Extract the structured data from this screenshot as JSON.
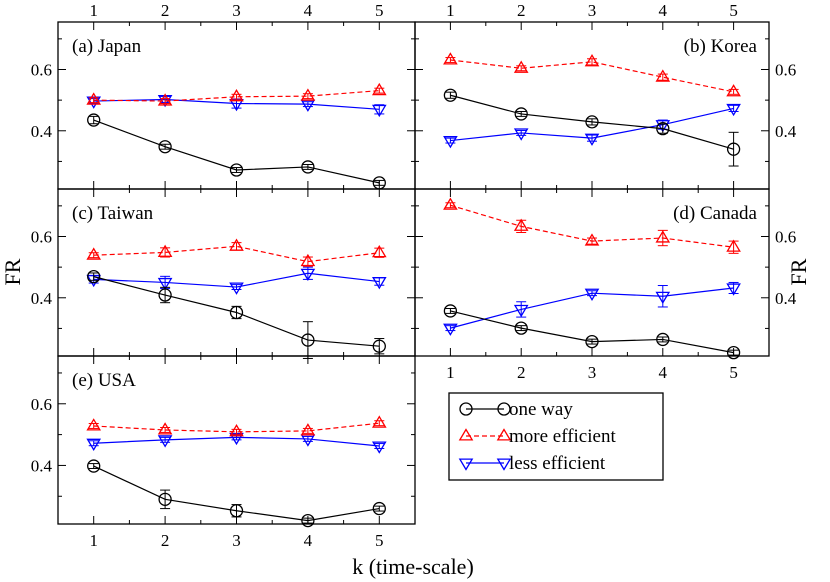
{
  "chart_data": {
    "type": "line",
    "xlabel": "k (time-scale)",
    "ylabel": "FR",
    "x": [
      1,
      2,
      3,
      4,
      5
    ],
    "xticks": [
      "1",
      "2",
      "3",
      "4",
      "5"
    ],
    "yticks": [
      "0.4",
      "0.6"
    ],
    "ylim": [
      0.21,
      0.755
    ],
    "legend": {
      "position": "bottom-right",
      "entries": [
        {
          "key": "one_way",
          "label": "one way",
          "color": "#000000",
          "marker": "circle",
          "dash": "solid"
        },
        {
          "key": "more",
          "label": "more efficient",
          "color": "#ff0000",
          "marker": "triangle-up",
          "dash": "dashed"
        },
        {
          "key": "less",
          "label": "less efficient",
          "color": "#0000ff",
          "marker": "triangle-down",
          "dash": "solid"
        }
      ]
    },
    "panels": [
      {
        "id": "a",
        "title": "(a) Japan",
        "series": {
          "one_way": {
            "values": [
              0.435,
              0.348,
              0.272,
              0.282,
              0.23
            ],
            "err": [
              0.012,
              0.008,
              0.008,
              0.008,
              0.008
            ]
          },
          "more": {
            "values": [
              0.5,
              0.497,
              0.511,
              0.513,
              0.531
            ],
            "err": [
              0.008,
              0.008,
              0.008,
              0.008,
              0.008
            ]
          },
          "less": {
            "values": [
              0.497,
              0.502,
              0.489,
              0.487,
              0.47
            ],
            "err": [
              0.008,
              0.01,
              0.015,
              0.008,
              0.015
            ]
          }
        }
      },
      {
        "id": "b",
        "title": "(b) Korea",
        "series": {
          "one_way": {
            "values": [
              0.516,
              0.455,
              0.429,
              0.407,
              0.34
            ],
            "err": [
              0.01,
              0.008,
              0.01,
              0.015,
              0.055
            ]
          },
          "more": {
            "values": [
              0.631,
              0.604,
              0.625,
              0.575,
              0.527
            ],
            "err": [
              0.008,
              0.008,
              0.01,
              0.01,
              0.008
            ]
          },
          "less": {
            "values": [
              0.368,
              0.393,
              0.376,
              0.42,
              0.473
            ],
            "err": [
              0.008,
              0.008,
              0.01,
              0.015,
              0.01
            ]
          }
        }
      },
      {
        "id": "c",
        "title": "(c) Taiwan",
        "series": {
          "one_way": {
            "values": [
              0.469,
              0.409,
              0.352,
              0.262,
              0.242
            ],
            "err": [
              0.012,
              0.025,
              0.02,
              0.06,
              0.025
            ]
          },
          "more": {
            "values": [
              0.539,
              0.548,
              0.568,
              0.518,
              0.547
            ],
            "err": [
              0.008,
              0.015,
              0.012,
              0.015,
              0.015
            ]
          },
          "less": {
            "values": [
              0.46,
              0.45,
              0.435,
              0.48,
              0.453
            ],
            "err": [
              0.012,
              0.02,
              0.008,
              0.02,
              0.012
            ]
          }
        }
      },
      {
        "id": "d",
        "title": "(d) Canada",
        "series": {
          "one_way": {
            "values": [
              0.357,
              0.301,
              0.257,
              0.264,
              0.221
            ],
            "err": [
              0.008,
              0.008,
              0.008,
              0.008,
              0.008
            ]
          },
          "more": {
            "values": [
              0.702,
              0.633,
              0.585,
              0.595,
              0.565
            ],
            "err": [
              0.008,
              0.02,
              0.01,
              0.025,
              0.02
            ]
          },
          "less": {
            "values": [
              0.301,
              0.362,
              0.415,
              0.405,
              0.432
            ],
            "err": [
              0.008,
              0.025,
              0.008,
              0.035,
              0.018
            ]
          }
        }
      },
      {
        "id": "e",
        "title": "(e) USA",
        "series": {
          "one_way": {
            "values": [
              0.398,
              0.29,
              0.253,
              0.221,
              0.26
            ],
            "err": [
              0.008,
              0.03,
              0.02,
              0.008,
              0.008
            ]
          },
          "more": {
            "values": [
              0.528,
              0.515,
              0.509,
              0.512,
              0.537
            ],
            "err": [
              0.008,
              0.008,
              0.008,
              0.008,
              0.008
            ]
          },
          "less": {
            "values": [
              0.472,
              0.483,
              0.491,
              0.486,
              0.463
            ],
            "err": [
              0.008,
              0.008,
              0.008,
              0.008,
              0.008
            ]
          }
        }
      }
    ]
  }
}
